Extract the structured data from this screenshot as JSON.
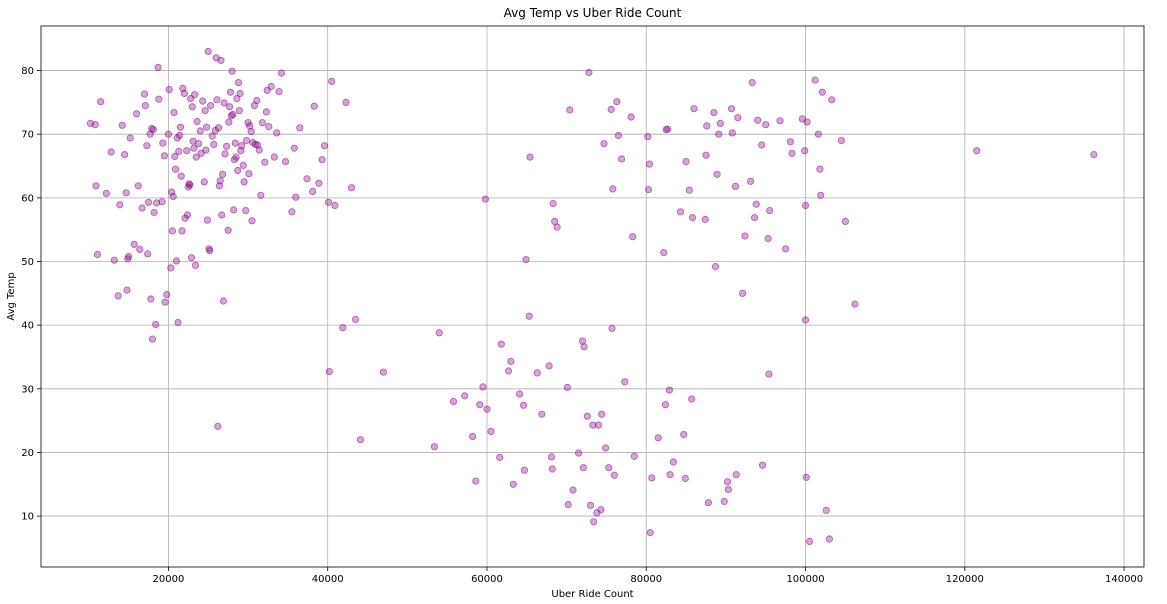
{
  "chart_data": {
    "type": "scatter",
    "title": "Avg Temp vs Uber Ride Count",
    "xlabel": "Uber Ride Count",
    "ylabel": "Avg Temp",
    "xlim": [
      4000,
      142500
    ],
    "ylim": [
      2,
      87
    ],
    "xticks": [
      20000,
      40000,
      60000,
      80000,
      100000,
      120000,
      140000
    ],
    "yticks": [
      10,
      20,
      30,
      40,
      50,
      60,
      70,
      80
    ],
    "grid": true,
    "marker_color": "#800080",
    "marker_alpha": 0.35,
    "series": [
      {
        "points": [
          [
            10200,
            71.7
          ],
          [
            10800,
            71.5
          ],
          [
            10900,
            61.9
          ],
          [
            11100,
            51.1
          ],
          [
            11500,
            75.1
          ],
          [
            12200,
            60.7
          ],
          [
            12800,
            67.2
          ],
          [
            13200,
            50.2
          ],
          [
            13700,
            44.6
          ],
          [
            13900,
            58.9
          ],
          [
            14200,
            71.4
          ],
          [
            14500,
            66.8
          ],
          [
            14700,
            60.8
          ],
          [
            14800,
            45.5
          ],
          [
            14900,
            50.4
          ],
          [
            15000,
            50.8
          ],
          [
            15200,
            69.4
          ],
          [
            15700,
            52.7
          ],
          [
            16000,
            73.2
          ],
          [
            16200,
            61.9
          ],
          [
            16400,
            51.9
          ],
          [
            16700,
            58.4
          ],
          [
            17000,
            76.3
          ],
          [
            17100,
            74.5
          ],
          [
            17300,
            68.2
          ],
          [
            17400,
            51.2
          ],
          [
            17500,
            59.3
          ],
          [
            17700,
            70.0
          ],
          [
            17800,
            44.1
          ],
          [
            17900,
            70.9
          ],
          [
            18000,
            37.8
          ],
          [
            18100,
            70.7
          ],
          [
            18200,
            57.7
          ],
          [
            18400,
            40.1
          ],
          [
            18500,
            59.2
          ],
          [
            18700,
            80.5
          ],
          [
            18800,
            75.5
          ],
          [
            19200,
            59.4
          ],
          [
            19300,
            68.6
          ],
          [
            19500,
            66.6
          ],
          [
            19600,
            43.6
          ],
          [
            19800,
            44.8
          ],
          [
            20000,
            70.0
          ],
          [
            20100,
            77.0
          ],
          [
            20300,
            49.0
          ],
          [
            20400,
            60.9
          ],
          [
            20500,
            54.8
          ],
          [
            20600,
            60.2
          ],
          [
            20700,
            73.4
          ],
          [
            20800,
            66.5
          ],
          [
            20900,
            64.5
          ],
          [
            21000,
            50.1
          ],
          [
            21100,
            69.4
          ],
          [
            21200,
            40.4
          ],
          [
            21300,
            67.3
          ],
          [
            21400,
            69.8
          ],
          [
            21500,
            71.1
          ],
          [
            21600,
            63.4
          ],
          [
            21700,
            54.8
          ],
          [
            21800,
            77.2
          ],
          [
            22000,
            76.4
          ],
          [
            22100,
            56.8
          ],
          [
            22300,
            67.4
          ],
          [
            22400,
            57.3
          ],
          [
            22500,
            61.7
          ],
          [
            22600,
            62.2
          ],
          [
            22700,
            62.0
          ],
          [
            22800,
            75.6
          ],
          [
            22900,
            50.6
          ],
          [
            23000,
            74.3
          ],
          [
            23100,
            68.9
          ],
          [
            23200,
            67.8
          ],
          [
            23300,
            76.2
          ],
          [
            23400,
            49.4
          ],
          [
            23500,
            66.4
          ],
          [
            23600,
            72.0
          ],
          [
            23800,
            68.5
          ],
          [
            24000,
            70.5
          ],
          [
            24100,
            67.0
          ],
          [
            24300,
            75.2
          ],
          [
            24500,
            62.5
          ],
          [
            24600,
            73.7
          ],
          [
            24700,
            67.5
          ],
          [
            24800,
            71.1
          ],
          [
            24900,
            56.5
          ],
          [
            25000,
            83.0
          ],
          [
            25100,
            52.0
          ],
          [
            25200,
            51.7
          ],
          [
            25300,
            74.5
          ],
          [
            25500,
            69.7
          ],
          [
            25700,
            68.4
          ],
          [
            25900,
            70.6
          ],
          [
            26000,
            82.0
          ],
          [
            26100,
            75.4
          ],
          [
            26200,
            24.1
          ],
          [
            26300,
            71.0
          ],
          [
            26400,
            61.9
          ],
          [
            26500,
            62.7
          ],
          [
            26600,
            81.6
          ],
          [
            26700,
            57.3
          ],
          [
            26800,
            63.7
          ],
          [
            26900,
            43.8
          ],
          [
            27000,
            74.9
          ],
          [
            27100,
            66.9
          ],
          [
            27300,
            68.1
          ],
          [
            27500,
            54.9
          ],
          [
            27600,
            71.9
          ],
          [
            27700,
            74.3
          ],
          [
            27800,
            76.6
          ],
          [
            27900,
            72.9
          ],
          [
            28000,
            79.9
          ],
          [
            28100,
            73.1
          ],
          [
            28200,
            58.1
          ],
          [
            28300,
            66.0
          ],
          [
            28400,
            68.6
          ],
          [
            28500,
            66.4
          ],
          [
            28600,
            75.6
          ],
          [
            28700,
            64.3
          ],
          [
            28800,
            78.1
          ],
          [
            28900,
            73.7
          ],
          [
            29000,
            76.4
          ],
          [
            29100,
            67.4
          ],
          [
            29200,
            68.2
          ],
          [
            29400,
            65.1
          ],
          [
            29500,
            62.5
          ],
          [
            29700,
            58.0
          ],
          [
            29800,
            69.0
          ],
          [
            30000,
            71.8
          ],
          [
            30100,
            63.8
          ],
          [
            30200,
            71.3
          ],
          [
            30400,
            70.4
          ],
          [
            30500,
            56.4
          ],
          [
            30600,
            68.7
          ],
          [
            30800,
            74.5
          ],
          [
            30900,
            68.4
          ],
          [
            31100,
            75.3
          ],
          [
            31200,
            68.3
          ],
          [
            31400,
            67.5
          ],
          [
            31600,
            60.4
          ],
          [
            31800,
            71.8
          ],
          [
            32100,
            65.6
          ],
          [
            32300,
            73.5
          ],
          [
            32400,
            76.9
          ],
          [
            32600,
            71.2
          ],
          [
            32900,
            77.5
          ],
          [
            33300,
            66.4
          ],
          [
            33600,
            70.2
          ],
          [
            33900,
            76.7
          ],
          [
            34200,
            79.6
          ],
          [
            34700,
            65.7
          ],
          [
            35500,
            57.8
          ],
          [
            35800,
            67.8
          ],
          [
            36000,
            60.1
          ],
          [
            36500,
            71.0
          ],
          [
            37400,
            63.0
          ],
          [
            38100,
            61.0
          ],
          [
            38300,
            74.4
          ],
          [
            38900,
            62.3
          ],
          [
            39300,
            66.0
          ],
          [
            39600,
            68.2
          ],
          [
            40100,
            59.3
          ],
          [
            40200,
            32.7
          ],
          [
            40500,
            78.3
          ],
          [
            40900,
            58.8
          ],
          [
            41900,
            39.6
          ],
          [
            42300,
            75.0
          ],
          [
            43000,
            61.6
          ],
          [
            43500,
            40.9
          ],
          [
            44100,
            22.0
          ],
          [
            47000,
            32.6
          ],
          [
            53400,
            20.9
          ],
          [
            54000,
            38.8
          ],
          [
            55800,
            28.0
          ],
          [
            57200,
            28.9
          ],
          [
            58200,
            22.5
          ],
          [
            58600,
            15.5
          ],
          [
            59100,
            27.5
          ],
          [
            59500,
            30.3
          ],
          [
            59800,
            59.8
          ],
          [
            60000,
            26.8
          ],
          [
            60500,
            23.3
          ],
          [
            61600,
            19.2
          ],
          [
            61800,
            37.0
          ],
          [
            62700,
            32.8
          ],
          [
            63000,
            34.3
          ],
          [
            63300,
            15.0
          ],
          [
            64100,
            29.2
          ],
          [
            64600,
            27.4
          ],
          [
            64700,
            17.2
          ],
          [
            64900,
            50.3
          ],
          [
            65300,
            41.4
          ],
          [
            65400,
            66.4
          ],
          [
            66300,
            32.5
          ],
          [
            66900,
            26.0
          ],
          [
            67800,
            33.6
          ],
          [
            68100,
            19.3
          ],
          [
            68200,
            17.4
          ],
          [
            68300,
            59.1
          ],
          [
            68500,
            56.3
          ],
          [
            68800,
            55.4
          ],
          [
            70100,
            30.2
          ],
          [
            70200,
            11.8
          ],
          [
            70400,
            73.8
          ],
          [
            70800,
            14.1
          ],
          [
            71500,
            19.9
          ],
          [
            72000,
            37.5
          ],
          [
            72100,
            17.6
          ],
          [
            72200,
            36.6
          ],
          [
            72600,
            25.7
          ],
          [
            72800,
            79.7
          ],
          [
            73000,
            11.7
          ],
          [
            73300,
            24.3
          ],
          [
            73400,
            9.1
          ],
          [
            73800,
            10.5
          ],
          [
            74000,
            24.3
          ],
          [
            74300,
            11.0
          ],
          [
            74400,
            26.0
          ],
          [
            74700,
            68.5
          ],
          [
            74900,
            20.7
          ],
          [
            75300,
            17.6
          ],
          [
            75600,
            73.9
          ],
          [
            75700,
            39.5
          ],
          [
            75800,
            61.4
          ],
          [
            76000,
            16.4
          ],
          [
            76300,
            75.1
          ],
          [
            76500,
            69.8
          ],
          [
            76900,
            66.1
          ],
          [
            77300,
            31.1
          ],
          [
            78100,
            72.7
          ],
          [
            78300,
            53.9
          ],
          [
            78500,
            19.4
          ],
          [
            80200,
            69.6
          ],
          [
            80300,
            61.3
          ],
          [
            80400,
            65.3
          ],
          [
            80500,
            7.4
          ],
          [
            80700,
            16.0
          ],
          [
            81500,
            22.3
          ],
          [
            82200,
            51.4
          ],
          [
            82400,
            27.5
          ],
          [
            82500,
            70.7
          ],
          [
            82700,
            70.8
          ],
          [
            82900,
            29.8
          ],
          [
            83000,
            16.5
          ],
          [
            83400,
            18.5
          ],
          [
            84300,
            57.8
          ],
          [
            84700,
            22.8
          ],
          [
            84900,
            15.9
          ],
          [
            85000,
            65.7
          ],
          [
            85400,
            61.2
          ],
          [
            85700,
            28.4
          ],
          [
            85800,
            56.9
          ],
          [
            86000,
            74.0
          ],
          [
            87400,
            56.6
          ],
          [
            87500,
            66.7
          ],
          [
            87600,
            71.3
          ],
          [
            87800,
            12.1
          ],
          [
            88500,
            73.4
          ],
          [
            88700,
            49.2
          ],
          [
            88900,
            63.7
          ],
          [
            89100,
            70.0
          ],
          [
            89300,
            71.7
          ],
          [
            89800,
            12.3
          ],
          [
            90200,
            15.4
          ],
          [
            90300,
            14.2
          ],
          [
            90700,
            74.0
          ],
          [
            90800,
            70.2
          ],
          [
            91200,
            61.8
          ],
          [
            91300,
            16.5
          ],
          [
            91500,
            72.6
          ],
          [
            92100,
            45.0
          ],
          [
            92400,
            54.0
          ],
          [
            93100,
            62.6
          ],
          [
            93300,
            78.1
          ],
          [
            93600,
            56.9
          ],
          [
            93800,
            59.0
          ],
          [
            94000,
            72.2
          ],
          [
            94500,
            68.3
          ],
          [
            94600,
            18.0
          ],
          [
            95000,
            71.5
          ],
          [
            95300,
            53.6
          ],
          [
            95400,
            32.3
          ],
          [
            95500,
            58.0
          ],
          [
            96800,
            72.1
          ],
          [
            97500,
            52.0
          ],
          [
            98100,
            68.8
          ],
          [
            98300,
            67.0
          ],
          [
            99600,
            72.4
          ],
          [
            99900,
            67.4
          ],
          [
            100000,
            58.8
          ],
          [
            100000,
            40.8
          ],
          [
            100100,
            16.1
          ],
          [
            100200,
            71.9
          ],
          [
            100500,
            6.0
          ],
          [
            101200,
            78.5
          ],
          [
            101600,
            70.0
          ],
          [
            101800,
            64.5
          ],
          [
            101900,
            60.4
          ],
          [
            102100,
            76.6
          ],
          [
            102600,
            10.9
          ],
          [
            103000,
            6.4
          ],
          [
            103300,
            75.4
          ],
          [
            104500,
            69.0
          ],
          [
            105000,
            56.3
          ],
          [
            106200,
            43.3
          ],
          [
            121500,
            67.4
          ],
          [
            136200,
            66.8
          ]
        ]
      }
    ]
  }
}
